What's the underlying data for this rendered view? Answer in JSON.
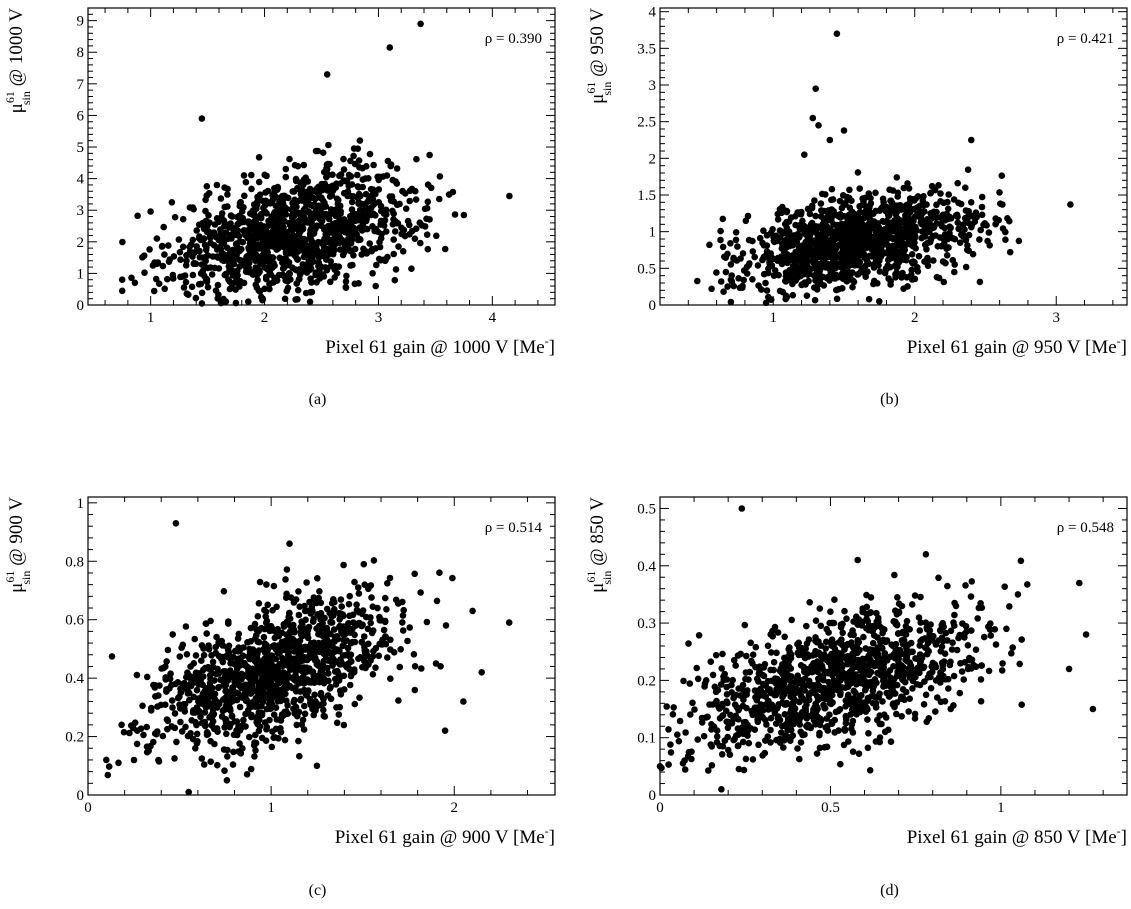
{
  "chart_data": [
    {
      "type": "scatter",
      "panel_label": "(a)",
      "xlabel_main": "Pixel 61 gain @ 1000 V [Me",
      "xlabel_sup": "-",
      "xlabel_end": "]",
      "ylabel_mu": "μ",
      "ylabel_sup": "61",
      "ylabel_sub": "sin",
      "ylabel_rest": " @ 1000 V",
      "annotation": "ρ = 0.390",
      "rho": 0.39,
      "xlim": [
        0.45,
        4.55
      ],
      "ylim": [
        0,
        9.4
      ],
      "xticks": [
        1,
        2,
        3,
        4
      ],
      "xtick_labels": [
        "1",
        "2",
        "3",
        "4"
      ],
      "yticks": [
        0,
        1,
        2,
        3,
        4,
        5,
        6,
        7,
        8,
        9
      ],
      "ytick_labels": [
        "0",
        "1",
        "2",
        "3",
        "4",
        "5",
        "6",
        "7",
        "8",
        "9"
      ],
      "cloud": {
        "n": 1200,
        "mx": 2.25,
        "sx": 0.55,
        "my": 2.25,
        "sy": 1.05,
        "xmin": 0.75,
        "xmax": 3.85,
        "ymin": 0.05,
        "ymax": 6.3
      },
      "outliers": [
        [
          3.37,
          8.9
        ],
        [
          3.1,
          8.15
        ],
        [
          2.55,
          7.3
        ],
        [
          4.15,
          3.45
        ],
        [
          0.75,
          0.8
        ],
        [
          0.75,
          0.45
        ],
        [
          1.45,
          0.05
        ],
        [
          2.4,
          0.1
        ],
        [
          1.45,
          5.9
        ],
        [
          3.75,
          2.85
        ]
      ]
    },
    {
      "type": "scatter",
      "panel_label": "(b)",
      "xlabel_main": "Pixel 61 gain @ 950 V [Me",
      "xlabel_sup": "-",
      "xlabel_end": "]",
      "ylabel_mu": "μ",
      "ylabel_sup": "61",
      "ylabel_sub": "sin",
      "ylabel_rest": " @ 950 V",
      "annotation": "ρ = 0.421",
      "rho": 0.421,
      "xlim": [
        0.2,
        3.5
      ],
      "ylim": [
        0,
        4.05
      ],
      "xticks": [
        1,
        2,
        3
      ],
      "xtick_labels": [
        "1",
        "2",
        "3"
      ],
      "yticks": [
        0,
        0.5,
        1,
        1.5,
        2,
        2.5,
        3,
        3.5,
        4
      ],
      "ytick_labels": [
        "0",
        "0.5",
        "1",
        "1.5",
        "2",
        "2.5",
        "3",
        "3.5",
        "4"
      ],
      "cloud": {
        "n": 1200,
        "mx": 1.6,
        "sx": 0.42,
        "my": 0.85,
        "sy": 0.33,
        "xmin": 0.4,
        "xmax": 2.75,
        "ymin": 0.03,
        "ymax": 1.9
      },
      "outliers": [
        [
          1.45,
          3.7
        ],
        [
          1.3,
          2.95
        ],
        [
          1.28,
          2.55
        ],
        [
          1.32,
          2.45
        ],
        [
          1.5,
          2.38
        ],
        [
          1.4,
          2.25
        ],
        [
          3.1,
          1.37
        ],
        [
          2.4,
          2.25
        ],
        [
          1.75,
          0.05
        ],
        [
          0.95,
          0.03
        ],
        [
          1.22,
          2.05
        ]
      ]
    },
    {
      "type": "scatter",
      "panel_label": "(c)",
      "xlabel_main": "Pixel 61 gain @ 900 V [Me",
      "xlabel_sup": "-",
      "xlabel_end": "]",
      "ylabel_mu": "μ",
      "ylabel_sup": "61",
      "ylabel_sub": "sin",
      "ylabel_rest": " @ 900 V",
      "annotation": "ρ = 0.514",
      "rho": 0.514,
      "xlim": [
        0,
        2.55
      ],
      "ylim": [
        0,
        1.02
      ],
      "xticks": [
        0,
        1,
        2
      ],
      "xtick_labels": [
        "0",
        "1",
        "2"
      ],
      "yticks": [
        0,
        0.2,
        0.4,
        0.6,
        0.8,
        1
      ],
      "ytick_labels": [
        "0",
        "0.2",
        "0.4",
        "0.6",
        "0.8",
        "1"
      ],
      "cloud": {
        "n": 1200,
        "mx": 1.0,
        "sx": 0.35,
        "my": 0.42,
        "sy": 0.13,
        "xmin": 0.1,
        "xmax": 2.0,
        "ymin": 0.05,
        "ymax": 0.88
      },
      "outliers": [
        [
          0.48,
          0.93
        ],
        [
          1.1,
          0.86
        ],
        [
          0.55,
          0.01
        ],
        [
          1.25,
          0.1
        ],
        [
          2.3,
          0.59
        ],
        [
          2.1,
          0.63
        ],
        [
          2.15,
          0.42
        ],
        [
          1.95,
          0.22
        ],
        [
          2.05,
          0.32
        ],
        [
          1.9,
          0.45
        ],
        [
          0.1,
          0.12
        ]
      ]
    },
    {
      "type": "scatter",
      "panel_label": "(d)",
      "xlabel_main": "Pixel 61 gain @ 850 V [Me",
      "xlabel_sup": "-",
      "xlabel_end": "]",
      "ylabel_mu": "μ",
      "ylabel_sup": "61",
      "ylabel_sub": "sin",
      "ylabel_rest": " @ 850 V",
      "annotation": "ρ = 0.548",
      "rho": 0.548,
      "xlim": [
        0,
        1.37
      ],
      "ylim": [
        0,
        0.52
      ],
      "xticks": [
        0,
        0.5,
        1
      ],
      "xtick_labels": [
        "0",
        "0.5",
        "1"
      ],
      "yticks": [
        0,
        0.1,
        0.2,
        0.3,
        0.4,
        0.5
      ],
      "ytick_labels": [
        "0",
        "0.1",
        "0.2",
        "0.3",
        "0.4",
        "0.5"
      ],
      "cloud": {
        "n": 1200,
        "mx": 0.52,
        "sx": 0.22,
        "my": 0.2,
        "sy": 0.065,
        "xmin": 0.0,
        "xmax": 1.15,
        "ymin": 0.04,
        "ymax": 0.41
      },
      "outliers": [
        [
          0.24,
          0.5
        ],
        [
          0.78,
          0.42
        ],
        [
          1.23,
          0.37
        ],
        [
          1.27,
          0.15
        ],
        [
          1.25,
          0.28
        ],
        [
          0.18,
          0.01
        ],
        [
          0.0,
          0.05
        ],
        [
          0.58,
          0.41
        ],
        [
          1.2,
          0.22
        ],
        [
          1.05,
          0.35
        ]
      ]
    }
  ]
}
